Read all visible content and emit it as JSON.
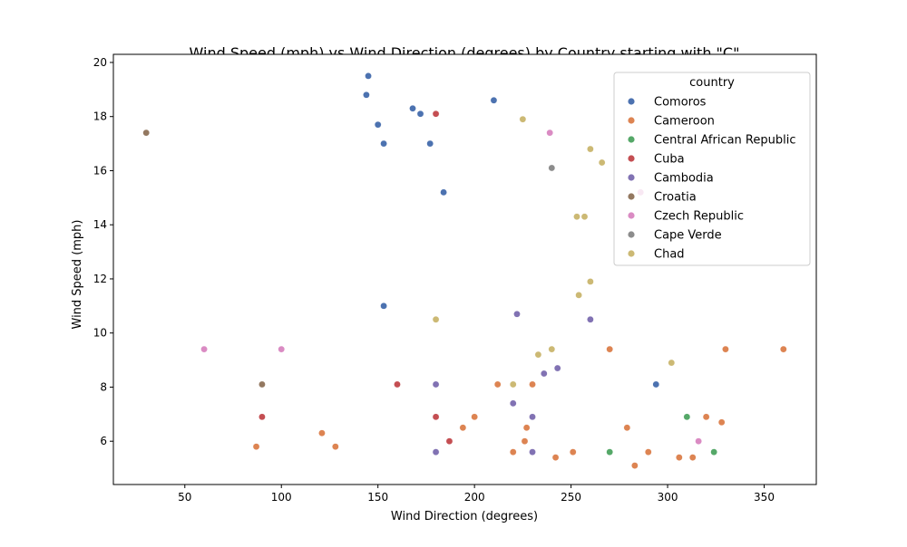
{
  "chart_data": {
    "type": "scatter",
    "title": "Wind Speed (mph) vs Wind Direction (degrees) by Country starting with \"C\"",
    "xlabel": "Wind Direction (degrees)",
    "ylabel": "Wind Speed (mph)",
    "xlim": [
      13,
      377
    ],
    "ylim": [
      4.4,
      20.3
    ],
    "xticks": [
      50,
      100,
      150,
      200,
      250,
      300,
      350
    ],
    "yticks": [
      6,
      8,
      10,
      12,
      14,
      16,
      18,
      20
    ],
    "grid": false,
    "legend": {
      "title": "country",
      "location": "top-right"
    },
    "series": [
      {
        "name": "Comoros",
        "color": "#4c72b0",
        "points": [
          [
            145,
            19.5
          ],
          [
            144,
            18.8
          ],
          [
            168,
            18.3
          ],
          [
            172,
            18.1
          ],
          [
            210,
            18.6
          ],
          [
            150,
            17.7
          ],
          [
            153,
            17.0
          ],
          [
            177,
            17.0
          ],
          [
            184,
            15.2
          ],
          [
            153,
            11.0
          ],
          [
            294,
            8.1
          ]
        ]
      },
      {
        "name": "Cameroon",
        "color": "#dd8452",
        "points": [
          [
            87,
            5.8
          ],
          [
            121,
            6.3
          ],
          [
            128,
            5.8
          ],
          [
            194,
            6.5
          ],
          [
            200,
            6.9
          ],
          [
            212,
            8.1
          ],
          [
            220,
            5.6
          ],
          [
            226,
            6.0
          ],
          [
            227,
            6.5
          ],
          [
            230,
            8.1
          ],
          [
            242,
            5.4
          ],
          [
            251,
            5.6
          ],
          [
            270,
            9.4
          ],
          [
            279,
            6.5
          ],
          [
            283,
            5.1
          ],
          [
            290,
            5.6
          ],
          [
            306,
            5.4
          ],
          [
            313,
            5.4
          ],
          [
            320,
            6.9
          ],
          [
            328,
            6.7
          ],
          [
            330,
            9.4
          ],
          [
            360,
            9.4
          ]
        ]
      },
      {
        "name": "Central African Republic",
        "color": "#55a868",
        "points": [
          [
            270,
            5.6
          ],
          [
            310,
            6.9
          ],
          [
            324,
            5.6
          ]
        ]
      },
      {
        "name": "Cuba",
        "color": "#c44e52",
        "points": [
          [
            180,
            18.1
          ],
          [
            90,
            6.9
          ],
          [
            160,
            8.1
          ],
          [
            180,
            6.9
          ],
          [
            187,
            6.0
          ]
        ]
      },
      {
        "name": "Cambodia",
        "color": "#8172b3",
        "points": [
          [
            222,
            10.7
          ],
          [
            260,
            10.5
          ],
          [
            243,
            8.7
          ],
          [
            236,
            8.5
          ],
          [
            180,
            8.1
          ],
          [
            220,
            7.4
          ],
          [
            230,
            6.9
          ],
          [
            180,
            5.6
          ],
          [
            230,
            5.6
          ]
        ]
      },
      {
        "name": "Croatia",
        "color": "#937860",
        "points": [
          [
            30,
            17.4
          ],
          [
            90,
            8.1
          ]
        ]
      },
      {
        "name": "Czech Republic",
        "color": "#da8bc3",
        "points": [
          [
            239,
            17.4
          ],
          [
            286,
            15.2
          ],
          [
            60,
            9.4
          ],
          [
            100,
            9.4
          ],
          [
            316,
            6.0
          ]
        ]
      },
      {
        "name": "Cape Verde",
        "color": "#8c8c8c",
        "points": [
          [
            240,
            16.1
          ]
        ]
      },
      {
        "name": "Chad",
        "color": "#ccb974",
        "points": [
          [
            225,
            17.9
          ],
          [
            260,
            16.8
          ],
          [
            266,
            16.3
          ],
          [
            253,
            14.3
          ],
          [
            257,
            14.3
          ],
          [
            260,
            11.9
          ],
          [
            254,
            11.4
          ],
          [
            180,
            10.5
          ],
          [
            240,
            9.4
          ],
          [
            233,
            9.2
          ],
          [
            302,
            8.9
          ],
          [
            220,
            8.1
          ]
        ]
      }
    ]
  }
}
